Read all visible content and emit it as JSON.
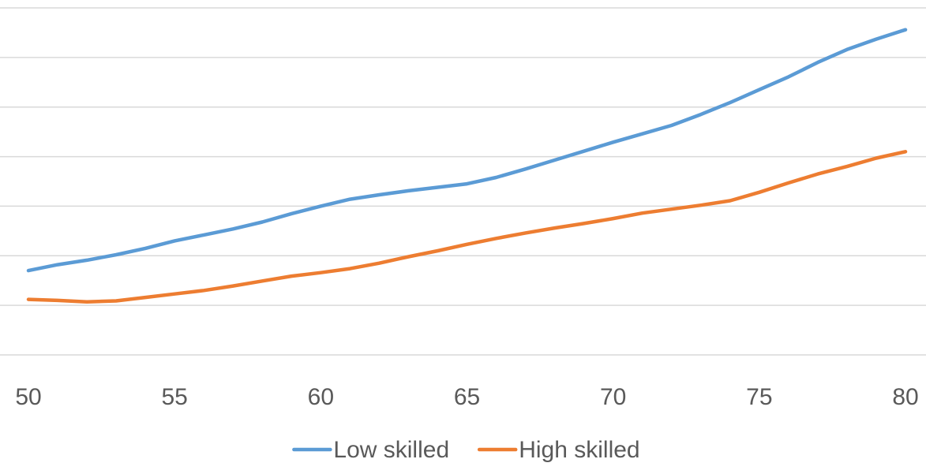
{
  "chart_data": {
    "type": "line",
    "title": "",
    "xlabel": "",
    "ylabel": "",
    "x": [
      50,
      51,
      52,
      53,
      54,
      55,
      56,
      57,
      58,
      59,
      60,
      61,
      62,
      63,
      64,
      65,
      66,
      67,
      68,
      69,
      70,
      71,
      72,
      73,
      74,
      75,
      76,
      77,
      78,
      79,
      80
    ],
    "x_ticks": [
      "50",
      "55",
      "60",
      "65",
      "70",
      "75",
      "80"
    ],
    "xlim": [
      50,
      80
    ],
    "ylim": [
      0,
      7
    ],
    "y_tick_labels_shown": false,
    "gridlines": "horizontal",
    "gridline_count": 8,
    "legend_position": "bottom",
    "series": [
      {
        "name": "Low skilled",
        "color": "#5b9bd5",
        "values": [
          1.7,
          1.82,
          1.91,
          2.02,
          2.15,
          2.3,
          2.42,
          2.54,
          2.68,
          2.85,
          3.0,
          3.14,
          3.23,
          3.31,
          3.38,
          3.45,
          3.58,
          3.75,
          3.93,
          4.11,
          4.29,
          4.46,
          4.63,
          4.85,
          5.09,
          5.35,
          5.61,
          5.9,
          6.16,
          6.37,
          6.56
        ]
      },
      {
        "name": "High skilled",
        "color": "#ed7d31",
        "values": [
          1.12,
          1.1,
          1.07,
          1.09,
          1.16,
          1.23,
          1.3,
          1.39,
          1.49,
          1.59,
          1.66,
          1.74,
          1.85,
          1.98,
          2.1,
          2.23,
          2.35,
          2.46,
          2.56,
          2.65,
          2.75,
          2.86,
          2.94,
          3.02,
          3.11,
          3.28,
          3.47,
          3.65,
          3.8,
          3.97,
          4.1
        ]
      }
    ]
  }
}
